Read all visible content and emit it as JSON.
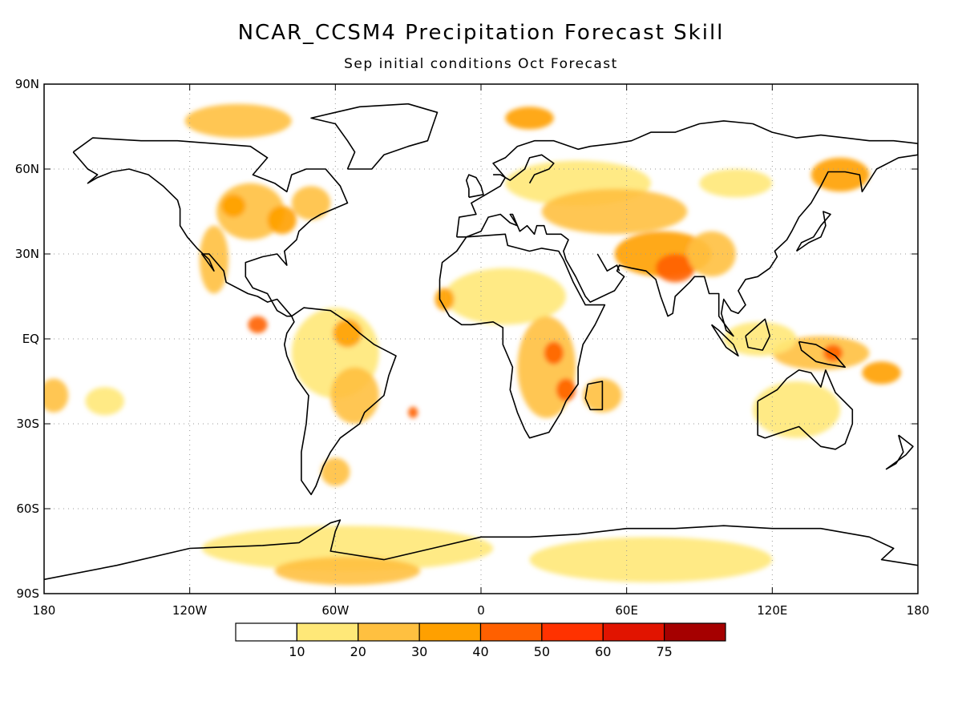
{
  "header": {
    "title": "NCAR_CCSM4 Precipitation Forecast Skill",
    "subtitle": "Sep initial conditions  Oct Forecast"
  },
  "axes": {
    "y_ticks": [
      "90N",
      "60N",
      "30N",
      "EQ",
      "30S",
      "60S",
      "90S"
    ],
    "y_values": [
      90,
      60,
      30,
      0,
      -30,
      -60,
      -90
    ],
    "x_ticks": [
      "180",
      "120W",
      "60W",
      "0",
      "60E",
      "120E",
      "180"
    ],
    "x_values": [
      -180,
      -120,
      -60,
      0,
      60,
      120,
      180
    ],
    "lon_range": [
      -180,
      180
    ],
    "lat_range": [
      -90,
      90
    ],
    "grid": "dotted"
  },
  "colorbar": {
    "bounds": [
      "10",
      "20",
      "30",
      "40",
      "50",
      "60",
      "75"
    ],
    "colors": [
      "#ffffff",
      "#ffe878",
      "#ffc040",
      "#ffa000",
      "#ff6000",
      "#ff3200",
      "#e11400",
      "#a50000"
    ]
  },
  "skill_regions": [
    {
      "lon": -95,
      "lat": 45,
      "rx": 14,
      "ry": 10,
      "level": 2
    },
    {
      "lon": -102,
      "lat": 47,
      "rx": 5,
      "ry": 4,
      "level": 3
    },
    {
      "lon": -82,
      "lat": 42,
      "rx": 6,
      "ry": 5,
      "level": 3
    },
    {
      "lon": -110,
      "lat": 28,
      "rx": 6,
      "ry": 12,
      "level": 2
    },
    {
      "lon": -70,
      "lat": 48,
      "rx": 8,
      "ry": 6,
      "level": 2
    },
    {
      "lon": -100,
      "lat": 77,
      "rx": 22,
      "ry": 6,
      "level": 2
    },
    {
      "lon": -92,
      "lat": 5,
      "rx": 4,
      "ry": 3,
      "level": 4
    },
    {
      "lon": -60,
      "lat": -5,
      "rx": 18,
      "ry": 16,
      "level": 1
    },
    {
      "lon": -55,
      "lat": 2,
      "rx": 6,
      "ry": 5,
      "level": 3
    },
    {
      "lon": -52,
      "lat": -20,
      "rx": 10,
      "ry": 10,
      "level": 2
    },
    {
      "lon": -60,
      "lat": -47,
      "rx": 6,
      "ry": 5,
      "level": 2
    },
    {
      "lon": -28,
      "lat": -26,
      "rx": 2,
      "ry": 2,
      "level": 4
    },
    {
      "lon": -176,
      "lat": -20,
      "rx": 6,
      "ry": 6,
      "level": 2
    },
    {
      "lon": -155,
      "lat": -22,
      "rx": 8,
      "ry": 5,
      "level": 1
    },
    {
      "lon": 10,
      "lat": 15,
      "rx": 25,
      "ry": 10,
      "level": 1
    },
    {
      "lon": -15,
      "lat": 14,
      "rx": 4,
      "ry": 4,
      "level": 3
    },
    {
      "lon": 27,
      "lat": -10,
      "rx": 12,
      "ry": 18,
      "level": 2
    },
    {
      "lon": 30,
      "lat": -5,
      "rx": 4,
      "ry": 4,
      "level": 4
    },
    {
      "lon": 35,
      "lat": -18,
      "rx": 4,
      "ry": 4,
      "level": 4
    },
    {
      "lon": 50,
      "lat": -20,
      "rx": 8,
      "ry": 6,
      "level": 2
    },
    {
      "lon": 20,
      "lat": 78,
      "rx": 10,
      "ry": 4,
      "level": 3
    },
    {
      "lon": 40,
      "lat": 55,
      "rx": 30,
      "ry": 8,
      "level": 1
    },
    {
      "lon": 55,
      "lat": 45,
      "rx": 30,
      "ry": 8,
      "level": 2
    },
    {
      "lon": 75,
      "lat": 30,
      "rx": 20,
      "ry": 8,
      "level": 3
    },
    {
      "lon": 80,
      "lat": 25,
      "rx": 8,
      "ry": 5,
      "level": 4
    },
    {
      "lon": 95,
      "lat": 30,
      "rx": 10,
      "ry": 8,
      "level": 2
    },
    {
      "lon": 105,
      "lat": 55,
      "rx": 15,
      "ry": 5,
      "level": 1
    },
    {
      "lon": 148,
      "lat": 58,
      "rx": 12,
      "ry": 6,
      "level": 3
    },
    {
      "lon": 140,
      "lat": -5,
      "rx": 20,
      "ry": 6,
      "level": 2
    },
    {
      "lon": 145,
      "lat": -5,
      "rx": 4,
      "ry": 3,
      "level": 4
    },
    {
      "lon": 165,
      "lat": -12,
      "rx": 8,
      "ry": 4,
      "level": 3
    },
    {
      "lon": 130,
      "lat": -25,
      "rx": 18,
      "ry": 10,
      "level": 1
    },
    {
      "lon": 115,
      "lat": 0,
      "rx": 15,
      "ry": 6,
      "level": 1
    },
    {
      "lon": -55,
      "lat": -74,
      "rx": 60,
      "ry": 8,
      "level": 1
    },
    {
      "lon": -55,
      "lat": -82,
      "rx": 30,
      "ry": 5,
      "level": 2
    },
    {
      "lon": 70,
      "lat": -78,
      "rx": 50,
      "ry": 8,
      "level": 1
    }
  ]
}
